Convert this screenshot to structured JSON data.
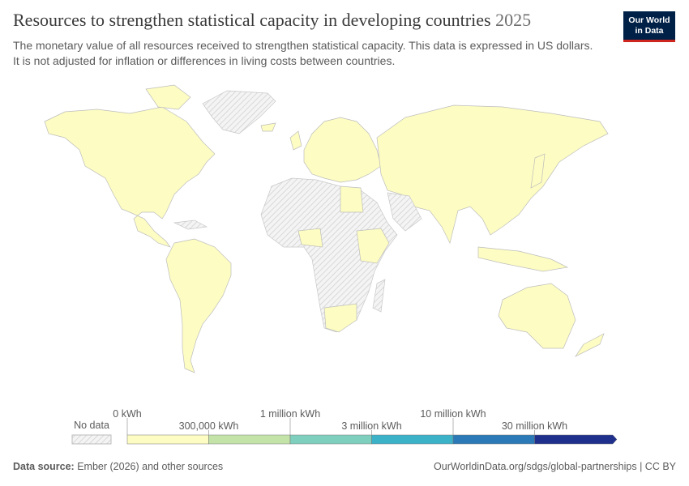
{
  "header": {
    "title": "Resources to strengthen statistical capacity in developing countries",
    "year": "2025",
    "subtitle": "The monetary value of all resources received to strengthen statistical capacity. This data is expressed in US dollars. It is not adjusted for inflation or differences in living costs between countries.",
    "logo": [
      "Our World",
      "in Data"
    ]
  },
  "legend": {
    "no_data": "No data",
    "steps": [
      {
        "label": "0 kWh",
        "color": "#fdfcc2"
      },
      {
        "label": "300,000 kWh",
        "color": "#c3e3a8"
      },
      {
        "label": "1 million kWh",
        "color": "#7ecfbd"
      },
      {
        "label": "3 million kWh",
        "color": "#3bb2c8"
      },
      {
        "label": "10 million kWh",
        "color": "#2b7ab7"
      },
      {
        "label": "30 million kWh",
        "color": "#1f2f8c"
      }
    ]
  },
  "footer": {
    "source_label": "Data source:",
    "source": "Ember (2026) and other sources",
    "url": "OurWorldinData.org/sdgs/global-partnerships | CC BY"
  }
}
